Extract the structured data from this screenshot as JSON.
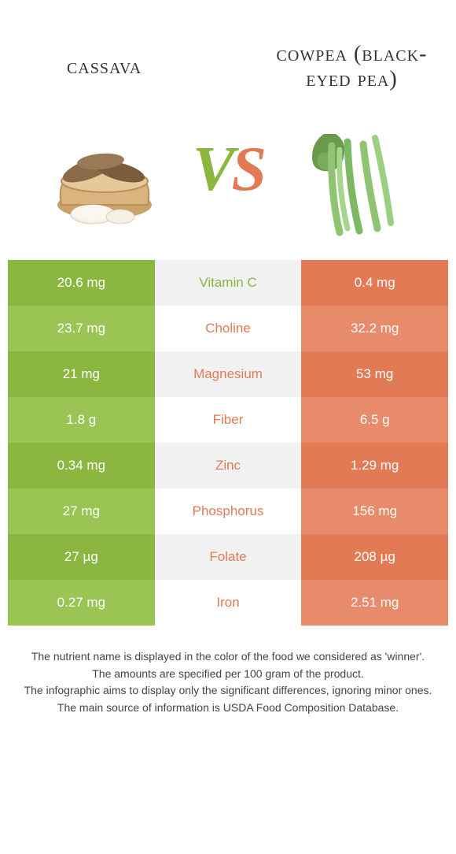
{
  "colors": {
    "left_primary": "#8bb63f",
    "left_alt": "#9ac454",
    "right_primary": "#e37a56",
    "right_alt": "#e88b6a",
    "mid_primary": "#f1f1f1",
    "mid_alt": "#ffffff",
    "text_white": "#ffffff",
    "text_dark": "#333333"
  },
  "left_food": {
    "title": "Cassava"
  },
  "right_food": {
    "title": "Cowpea (Black-Eyed Pea)"
  },
  "vs": {
    "v": "V",
    "s": "S"
  },
  "rows": [
    {
      "name": "Vitamin C",
      "left": "20.6 mg",
      "right": "0.4 mg",
      "winner": "left"
    },
    {
      "name": "Choline",
      "left": "23.7 mg",
      "right": "32.2 mg",
      "winner": "right"
    },
    {
      "name": "Magnesium",
      "left": "21 mg",
      "right": "53 mg",
      "winner": "right"
    },
    {
      "name": "Fiber",
      "left": "1.8 g",
      "right": "6.5 g",
      "winner": "right"
    },
    {
      "name": "Zinc",
      "left": "0.34 mg",
      "right": "1.29 mg",
      "winner": "right"
    },
    {
      "name": "Phosphorus",
      "left": "27 mg",
      "right": "156 mg",
      "winner": "right"
    },
    {
      "name": "Folate",
      "left": "27 µg",
      "right": "208 µg",
      "winner": "right"
    },
    {
      "name": "Iron",
      "left": "0.27 mg",
      "right": "2.51 mg",
      "winner": "right"
    }
  ],
  "footnotes": [
    "The nutrient name is displayed in the color of the food we considered as 'winner'.",
    "The amounts are specified per 100 gram of the product.",
    "The infographic aims to display only the significant differences, ignoring minor ones.",
    "The main source of information is USDA Food Composition Database."
  ]
}
